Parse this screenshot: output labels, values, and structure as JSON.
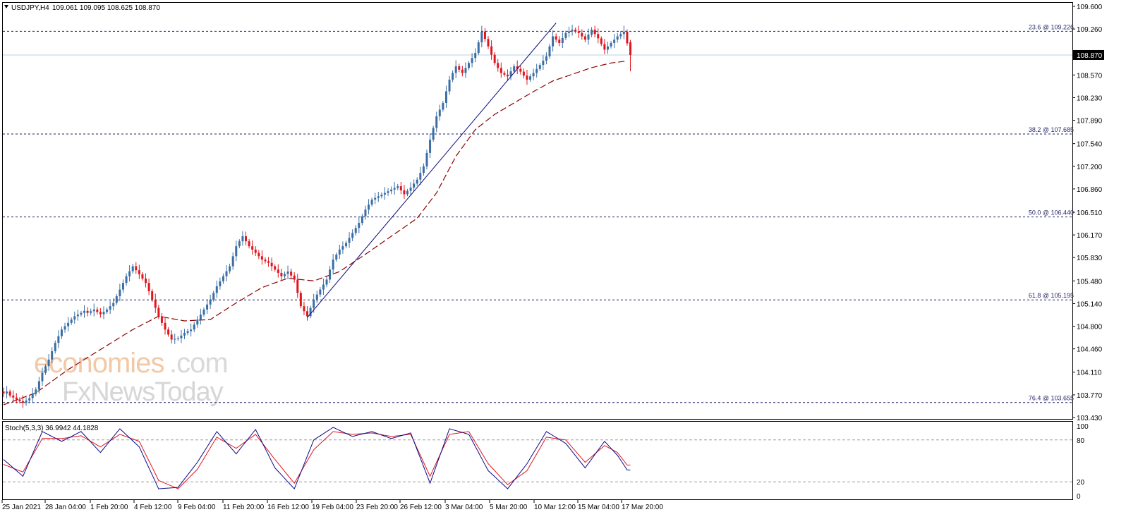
{
  "header": {
    "symbol": "USDJPY,H4",
    "ohlc": "109.061 109.095 108.625 108.870"
  },
  "watermark": {
    "part1": "economies",
    "part2": ".com",
    "line2": "FxNewsToday"
  },
  "price_axis": {
    "ticks": [
      "109.600",
      "109.260",
      "108.570",
      "108.230",
      "107.890",
      "107.540",
      "107.200",
      "106.860",
      "106.510",
      "106.170",
      "105.830",
      "105.480",
      "105.140",
      "104.800",
      "104.460",
      "104.110",
      "103.770",
      "103.430"
    ],
    "current_price_label": "108.870"
  },
  "time_axis": {
    "labels": [
      "25 Jan 2021",
      "28 Jan 04:00",
      "1 Feb 20:00",
      "4 Feb 12:00",
      "9 Feb 04:00",
      "11 Feb 20:00",
      "16 Feb 12:00",
      "19 Feb 04:00",
      "23 Feb 20:00",
      "26 Feb 12:00",
      "3 Mar 04:00",
      "5 Mar 20:00",
      "10 Mar 12:00",
      "15 Mar 04:00",
      "17 Mar 20:00"
    ]
  },
  "fib_levels": [
    {
      "label": "23.6 @ 109.226",
      "price": 109.226
    },
    {
      "label": "38.2 @ 107.685",
      "price": 107.685
    },
    {
      "label": "50.0 @ 106.440",
      "price": 106.44
    },
    {
      "label": "61.8 @ 105.195",
      "price": 105.195
    },
    {
      "label": "76.4 @ 103.655",
      "price": 103.655
    }
  ],
  "stoch": {
    "header": "Stoch(5,3,3) 36.9942 44.1828",
    "ticks": [
      "100",
      "80",
      "20",
      "0"
    ]
  },
  "colors": {
    "bull": "#3a6ea5",
    "bear": "#e0161e",
    "ma": "#8b0000",
    "trendline": "#0a0a7a",
    "fib": "#1e1e6e",
    "current_price_line": "#b9d3e6",
    "stoch_main": "#0a0a8a",
    "stoch_signal": "#e0161e"
  },
  "chart_data": {
    "type": "candlestick",
    "title": "USDJPY,H4",
    "timeframe": "H4",
    "last_ohlc": {
      "open": 109.061,
      "high": 109.095,
      "low": 108.625,
      "close": 108.87
    },
    "ylim": [
      103.43,
      109.6
    ],
    "price_path": [
      [
        0,
        103.82
      ],
      [
        2,
        103.76
      ],
      [
        4,
        103.7
      ],
      [
        6,
        103.65
      ],
      [
        8,
        103.72
      ],
      [
        10,
        103.85
      ],
      [
        12,
        104.1
      ],
      [
        14,
        104.3
      ],
      [
        16,
        104.55
      ],
      [
        18,
        104.75
      ],
      [
        20,
        104.85
      ],
      [
        22,
        104.95
      ],
      [
        24,
        105.0
      ],
      [
        26,
        105.0
      ],
      [
        28,
        105.05
      ],
      [
        30,
        104.98
      ],
      [
        32,
        105.05
      ],
      [
        34,
        105.15
      ],
      [
        36,
        105.35
      ],
      [
        38,
        105.55
      ],
      [
        40,
        105.7
      ],
      [
        42,
        105.58
      ],
      [
        44,
        105.45
      ],
      [
        46,
        105.2
      ],
      [
        48,
        104.95
      ],
      [
        50,
        104.75
      ],
      [
        52,
        104.6
      ],
      [
        54,
        104.62
      ],
      [
        56,
        104.7
      ],
      [
        58,
        104.75
      ],
      [
        60,
        104.9
      ],
      [
        62,
        105.05
      ],
      [
        64,
        105.2
      ],
      [
        66,
        105.4
      ],
      [
        68,
        105.55
      ],
      [
        70,
        105.7
      ],
      [
        72,
        106.0
      ],
      [
        74,
        106.15
      ],
      [
        76,
        106.0
      ],
      [
        78,
        105.9
      ],
      [
        80,
        105.8
      ],
      [
        82,
        105.75
      ],
      [
        84,
        105.65
      ],
      [
        86,
        105.55
      ],
      [
        88,
        105.62
      ],
      [
        90,
        105.5
      ],
      [
        92,
        105.1
      ],
      [
        94,
        104.95
      ],
      [
        96,
        105.2
      ],
      [
        98,
        105.35
      ],
      [
        100,
        105.5
      ],
      [
        102,
        105.8
      ],
      [
        104,
        105.95
      ],
      [
        106,
        106.05
      ],
      [
        108,
        106.2
      ],
      [
        110,
        106.35
      ],
      [
        112,
        106.55
      ],
      [
        114,
        106.7
      ],
      [
        116,
        106.75
      ],
      [
        118,
        106.8
      ],
      [
        120,
        106.85
      ],
      [
        122,
        106.9
      ],
      [
        124,
        106.78
      ],
      [
        126,
        106.88
      ],
      [
        128,
        107.0
      ],
      [
        130,
        107.2
      ],
      [
        132,
        107.6
      ],
      [
        134,
        107.95
      ],
      [
        136,
        108.15
      ],
      [
        138,
        108.5
      ],
      [
        140,
        108.7
      ],
      [
        142,
        108.6
      ],
      [
        144,
        108.75
      ],
      [
        146,
        108.9
      ],
      [
        148,
        109.22
      ],
      [
        150,
        109.0
      ],
      [
        152,
        108.75
      ],
      [
        154,
        108.6
      ],
      [
        156,
        108.55
      ],
      [
        158,
        108.7
      ],
      [
        160,
        108.62
      ],
      [
        162,
        108.5
      ],
      [
        164,
        108.6
      ],
      [
        166,
        108.72
      ],
      [
        168,
        108.85
      ],
      [
        170,
        109.15
      ],
      [
        172,
        109.05
      ],
      [
        174,
        109.2
      ],
      [
        176,
        109.25
      ],
      [
        178,
        109.2
      ],
      [
        180,
        109.1
      ],
      [
        182,
        109.25
      ],
      [
        184,
        109.12
      ],
      [
        186,
        108.95
      ],
      [
        188,
        109.05
      ],
      [
        190,
        109.15
      ],
      [
        192,
        109.22
      ],
      [
        194,
        108.87
      ]
    ],
    "ma_path": [
      [
        0,
        103.62
      ],
      [
        10,
        103.8
      ],
      [
        20,
        104.15
      ],
      [
        30,
        104.45
      ],
      [
        40,
        104.75
      ],
      [
        48,
        104.95
      ],
      [
        56,
        104.88
      ],
      [
        64,
        104.9
      ],
      [
        72,
        105.15
      ],
      [
        80,
        105.38
      ],
      [
        88,
        105.52
      ],
      [
        96,
        105.48
      ],
      [
        104,
        105.62
      ],
      [
        112,
        105.88
      ],
      [
        120,
        106.15
      ],
      [
        128,
        106.42
      ],
      [
        134,
        106.8
      ],
      [
        140,
        107.35
      ],
      [
        146,
        107.75
      ],
      [
        152,
        107.98
      ],
      [
        158,
        108.15
      ],
      [
        164,
        108.32
      ],
      [
        170,
        108.48
      ],
      [
        176,
        108.58
      ],
      [
        182,
        108.68
      ],
      [
        188,
        108.75
      ],
      [
        193,
        108.78
      ]
    ],
    "trendline": [
      [
        94,
        104.93
      ],
      [
        171,
        109.35
      ]
    ],
    "stochastic": {
      "params": "5,3,3",
      "main_last": 36.9942,
      "signal_last": 44.1828,
      "main_path": [
        [
          0,
          52
        ],
        [
          6,
          28
        ],
        [
          12,
          92
        ],
        [
          18,
          78
        ],
        [
          24,
          92
        ],
        [
          30,
          62
        ],
        [
          36,
          96
        ],
        [
          42,
          70
        ],
        [
          48,
          10
        ],
        [
          54,
          12
        ],
        [
          60,
          48
        ],
        [
          66,
          92
        ],
        [
          72,
          60
        ],
        [
          78,
          95
        ],
        [
          84,
          40
        ],
        [
          90,
          10
        ],
        [
          96,
          80
        ],
        [
          102,
          98
        ],
        [
          108,
          85
        ],
        [
          114,
          92
        ],
        [
          120,
          82
        ],
        [
          126,
          90
        ],
        [
          132,
          18
        ],
        [
          138,
          96
        ],
        [
          144,
          88
        ],
        [
          150,
          36
        ],
        [
          156,
          10
        ],
        [
          162,
          46
        ],
        [
          168,
          92
        ],
        [
          174,
          75
        ],
        [
          180,
          40
        ],
        [
          186,
          78
        ],
        [
          190,
          58
        ],
        [
          193,
          37
        ]
      ],
      "signal_path": [
        [
          0,
          45
        ],
        [
          6,
          34
        ],
        [
          12,
          82
        ],
        [
          18,
          82
        ],
        [
          24,
          86
        ],
        [
          30,
          70
        ],
        [
          36,
          88
        ],
        [
          42,
          78
        ],
        [
          48,
          22
        ],
        [
          54,
          10
        ],
        [
          60,
          38
        ],
        [
          66,
          84
        ],
        [
          72,
          68
        ],
        [
          78,
          88
        ],
        [
          84,
          52
        ],
        [
          90,
          18
        ],
        [
          96,
          66
        ],
        [
          102,
          92
        ],
        [
          108,
          88
        ],
        [
          114,
          90
        ],
        [
          120,
          85
        ],
        [
          126,
          88
        ],
        [
          132,
          28
        ],
        [
          138,
          88
        ],
        [
          144,
          92
        ],
        [
          150,
          46
        ],
        [
          156,
          16
        ],
        [
          162,
          36
        ],
        [
          168,
          84
        ],
        [
          174,
          80
        ],
        [
          180,
          48
        ],
        [
          186,
          72
        ],
        [
          190,
          62
        ],
        [
          193,
          44
        ]
      ]
    }
  }
}
